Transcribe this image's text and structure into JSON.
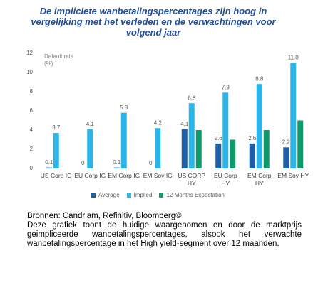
{
  "chart_data": {
    "type": "bar",
    "title": "De impliciete wanbetalingspercentages zijn hoog in vergelijking met het verleden en de verwachtingen voor volgend jaar",
    "y_axis_label": "Default rate (%)",
    "categories": [
      "US Corp IG",
      "EU Corp IG",
      "EM Corp IG",
      "EM Sov IG",
      "US CORP HY",
      "EU Corp HY",
      "EM Corp HY",
      "EM Sov HY"
    ],
    "series": [
      {
        "name": "Average",
        "color": "#1f5fa8",
        "values": [
          0.1,
          0,
          0.1,
          0,
          4.1,
          2.6,
          2.6,
          2.2
        ]
      },
      {
        "name": "Implied",
        "color": "#2bb5e8",
        "values": [
          3.7,
          4.1,
          5.8,
          4.2,
          6.8,
          7.9,
          8.8,
          11.0
        ],
        "value_labels": [
          "3.7",
          "4.1",
          "5.8",
          "4.2",
          "6.8",
          "7.9",
          "8.8",
          "11.0"
        ]
      },
      {
        "name": "12 Months Expectation",
        "color": "#0f9a6a",
        "values": [
          null,
          null,
          null,
          null,
          4.0,
          3.0,
          4.0,
          5.0
        ]
      }
    ],
    "ylim": [
      0,
      12
    ],
    "yticks": [
      0,
      2,
      4,
      6,
      8,
      10,
      12
    ],
    "grid": false,
    "source": "Bronnen: Candriam, Refinitiv, Bloomberg©",
    "note": "Deze grafiek toont de huidige waargenomen en door de marktprijs geimpliceerde wanbetalingspercentages, alsook het verwachte wanbetalingspercentage in het High yield-segment over 12 maanden."
  }
}
